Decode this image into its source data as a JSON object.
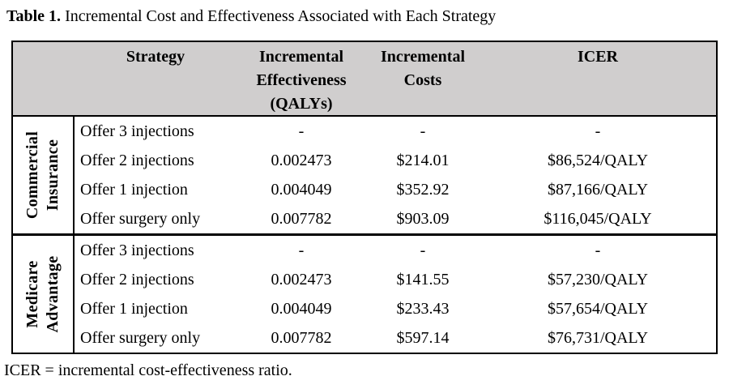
{
  "title": {
    "bold": "Table 1.",
    "rest": " Incremental Cost and Effectiveness Associated with Each Strategy"
  },
  "colors": {
    "header_bg": "#d0cece",
    "border": "#000000",
    "text": "#000000"
  },
  "table": {
    "headers": {
      "strategy": "Strategy",
      "effectiveness_lines": [
        "Incremental",
        "Effectiveness",
        "(QALYs)"
      ],
      "costs_lines": [
        "Incremental",
        "Costs"
      ],
      "icer": "ICER"
    },
    "groups": [
      {
        "label_lines": [
          "Commercial",
          "Insurance"
        ],
        "rows": [
          {
            "strategy": "Offer 3 injections",
            "effectiveness": "-",
            "costs": "-",
            "icer": "-"
          },
          {
            "strategy": "Offer 2 injections",
            "effectiveness": "0.002473",
            "costs": "$214.01",
            "icer": "$86,524/QALY"
          },
          {
            "strategy": "Offer 1 injection",
            "effectiveness": "0.004049",
            "costs": "$352.92",
            "icer": "$87,166/QALY"
          },
          {
            "strategy": "Offer surgery only",
            "effectiveness": "0.007782",
            "costs": "$903.09",
            "icer": "$116,045/QALY"
          }
        ]
      },
      {
        "label_lines": [
          "Medicare",
          "Advantage"
        ],
        "rows": [
          {
            "strategy": "Offer 3 injections",
            "effectiveness": "-",
            "costs": "-",
            "icer": "-"
          },
          {
            "strategy": "Offer 2 injections",
            "effectiveness": "0.002473",
            "costs": "$141.55",
            "icer": "$57,230/QALY"
          },
          {
            "strategy": "Offer 1 injection",
            "effectiveness": "0.004049",
            "costs": "$233.43",
            "icer": "$57,654/QALY"
          },
          {
            "strategy": "Offer surgery only",
            "effectiveness": "0.007782",
            "costs": "$597.14",
            "icer": "$76,731/QALY"
          }
        ]
      }
    ]
  },
  "footnote": "ICER = incremental cost-effectiveness ratio."
}
